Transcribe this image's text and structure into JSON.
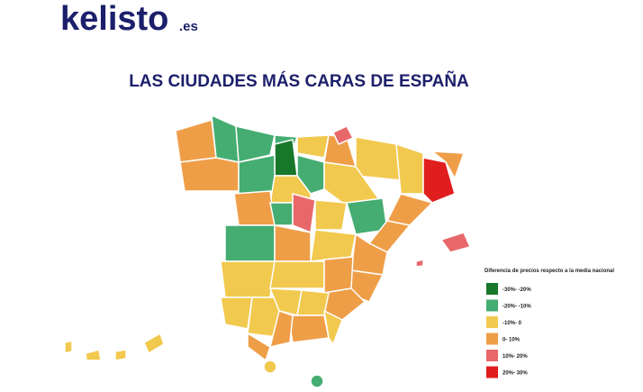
{
  "logo": {
    "name": "kelisto",
    "suffix": ".es"
  },
  "title": "LAS CIUDADES MÁS CARAS DE ESPAÑA",
  "legend": {
    "title": "Diferencia de precios respecto a  la media nacional",
    "items": [
      {
        "label": "-30%- -20%",
        "color": "#17772a"
      },
      {
        "label": "-20%- -10%",
        "color": "#45ad72"
      },
      {
        "label": "-10%- 0",
        "color": "#f2c94f"
      },
      {
        "label": "0- 10%",
        "color": "#ef9e48"
      },
      {
        "label": "10%- 20%",
        "color": "#e8686a"
      },
      {
        "label": "20%- 30%",
        "color": "#e01e1e"
      }
    ]
  }
}
